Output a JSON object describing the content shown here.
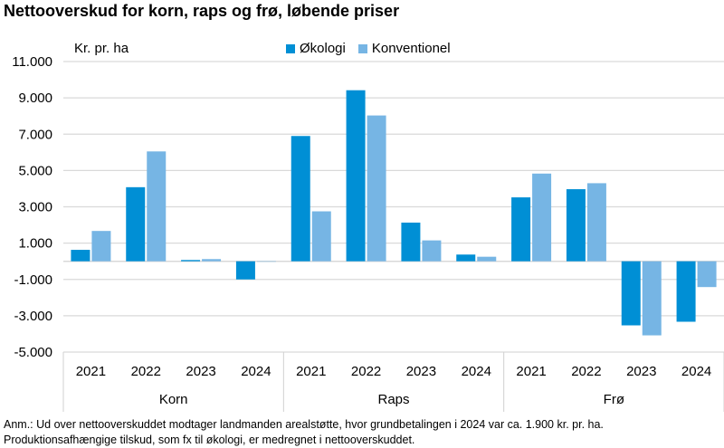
{
  "chart_data": {
    "type": "bar",
    "title": "Nettooverskud for korn, raps og frø, løbende priser",
    "ylabel": "Kr. pr. ha",
    "ylim": [
      -5000,
      11000
    ],
    "yticks": [
      11000,
      9000,
      7000,
      5000,
      3000,
      1000,
      -1000,
      -3000,
      -5000
    ],
    "ytick_labels": [
      "11.000",
      "9.000",
      "7.000",
      "5.000",
      "3.000",
      "1.000",
      "-1.000",
      "-3.000",
      "-5.000"
    ],
    "grid": true,
    "legend_placement": "top-center",
    "groups": [
      "Korn",
      "Raps",
      "Frø"
    ],
    "categories": [
      "2021",
      "2022",
      "2023",
      "2024",
      "2021",
      "2022",
      "2023",
      "2024",
      "2021",
      "2022",
      "2023",
      "2024"
    ],
    "series": [
      {
        "name": "Økologi",
        "color": "#008fd5",
        "values": [
          630,
          4080,
          70,
          -1000,
          6900,
          9420,
          2130,
          370,
          3520,
          3970,
          -3530,
          -3330
        ]
      },
      {
        "name": "Konventionel",
        "color": "#76b5e4",
        "values": [
          1670,
          6050,
          120,
          0,
          2750,
          8030,
          1150,
          250,
          4830,
          4300,
          -4080,
          -1420
        ]
      }
    ]
  },
  "note": {
    "line1": "Anm.: Ud over nettooverskuddet modtager landmanden arealstøtte, hvor grundbetalingen i 2024 var ca. 1.900 kr. pr. ha.",
    "line2": "Produktionsafhængige tilskud, som fx til økologi, er medregnet i nettooverskuddet."
  }
}
